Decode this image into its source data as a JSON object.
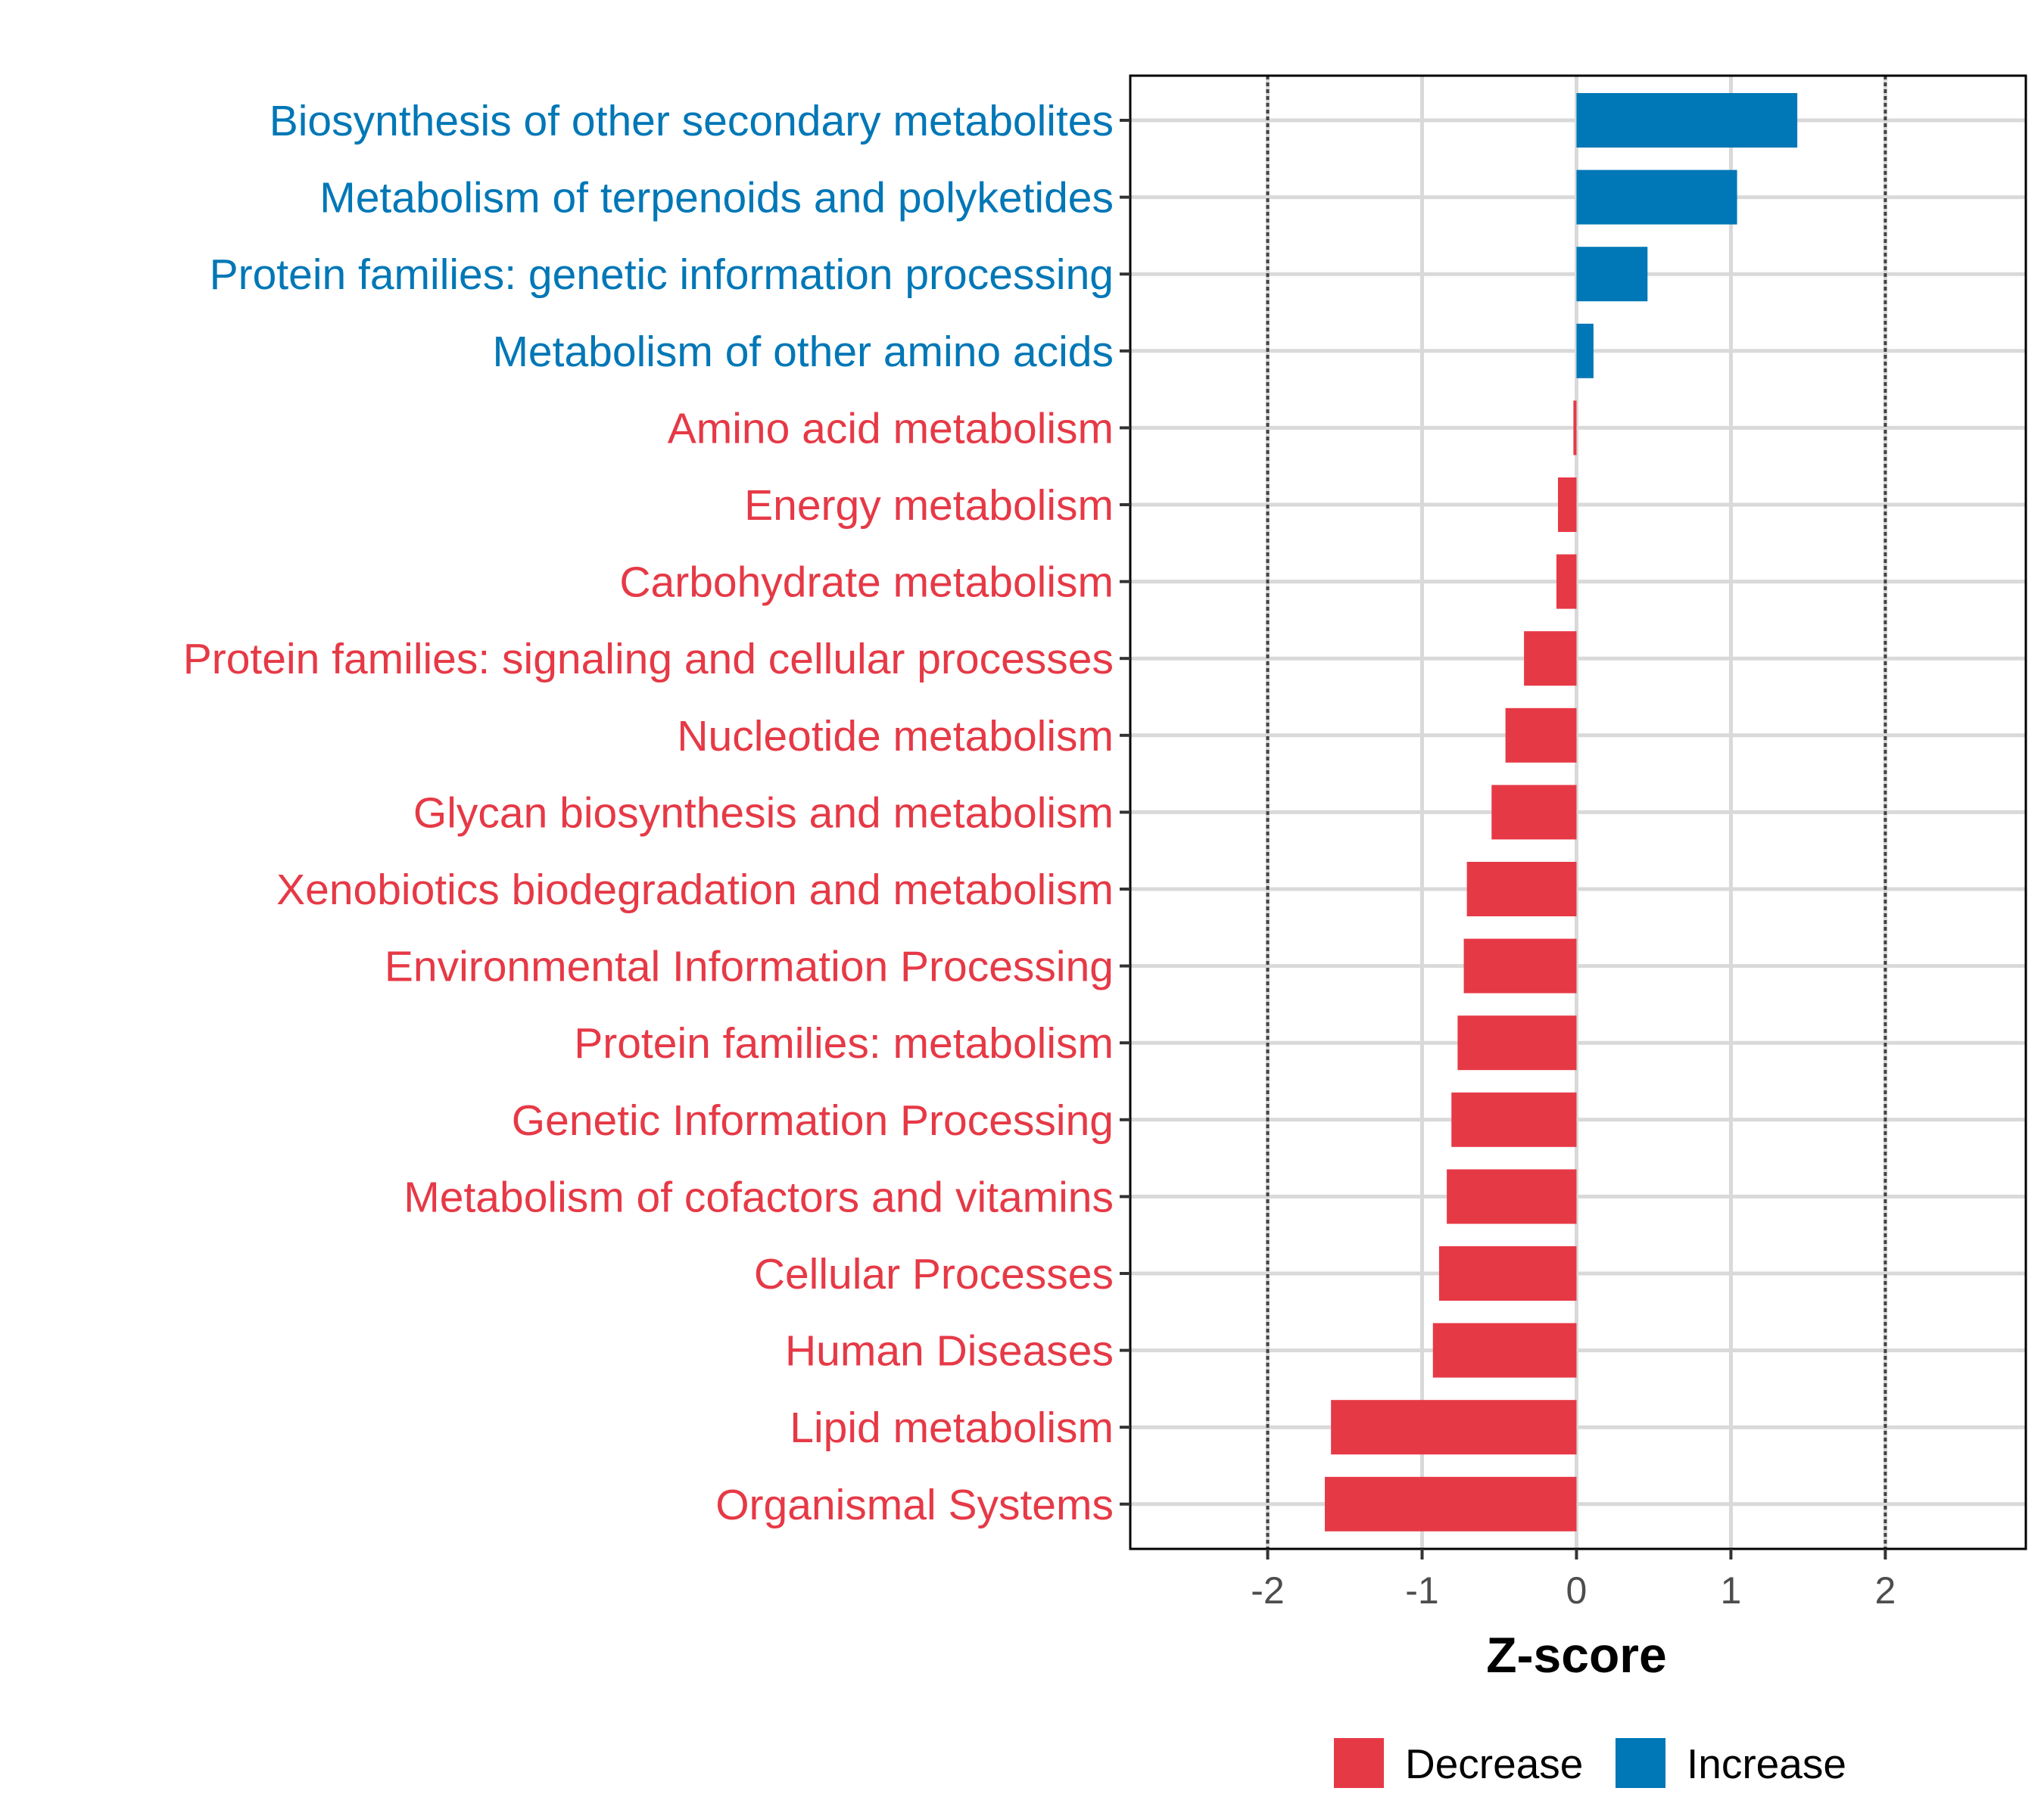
{
  "chart_data": {
    "type": "bar",
    "orientation": "horizontal",
    "title": "",
    "xlabel": "Z-score",
    "ylabel": "",
    "xlim": [
      -2.89,
      2.91
    ],
    "xticks": [
      -2,
      -1,
      0,
      1,
      2
    ],
    "xtick_labels": [
      "-2",
      "-1",
      "0",
      "1",
      "2"
    ],
    "reference_lines": [
      -2,
      2
    ],
    "grid": true,
    "categories": [
      "Biosynthesis of other secondary metabolites",
      "Metabolism of terpenoids and polyketides",
      "Protein families: genetic information processing",
      "Metabolism of other amino acids",
      "Amino acid metabolism",
      "Energy metabolism",
      "Carbohydrate metabolism",
      "Protein families: signaling and cellular processes",
      "Nucleotide metabolism",
      "Glycan biosynthesis and metabolism",
      "Xenobiotics biodegradation and metabolism",
      "Environmental Information Processing",
      "Protein families: metabolism",
      "Genetic Information Processing",
      "Metabolism of cofactors and vitamins",
      "Cellular Processes",
      "Human Diseases",
      "Lipid metabolism",
      "Organismal Systems"
    ],
    "values": [
      1.43,
      1.04,
      0.46,
      0.11,
      -0.02,
      -0.12,
      -0.13,
      -0.34,
      -0.46,
      -0.55,
      -0.71,
      -0.73,
      -0.77,
      -0.81,
      -0.84,
      -0.89,
      -0.93,
      -1.59,
      -1.63
    ],
    "groups": [
      "Increase",
      "Increase",
      "Increase",
      "Increase",
      "Decrease",
      "Decrease",
      "Decrease",
      "Decrease",
      "Decrease",
      "Decrease",
      "Decrease",
      "Decrease",
      "Decrease",
      "Decrease",
      "Decrease",
      "Decrease",
      "Decrease",
      "Decrease",
      "Decrease"
    ],
    "legend": {
      "position": "bottom",
      "entries": [
        {
          "name": "Decrease",
          "color": "#E63946"
        },
        {
          "name": "Increase",
          "color": "#0077B6"
        }
      ]
    },
    "colors": {
      "Decrease": "#E63946",
      "Increase": "#0077B6"
    }
  }
}
